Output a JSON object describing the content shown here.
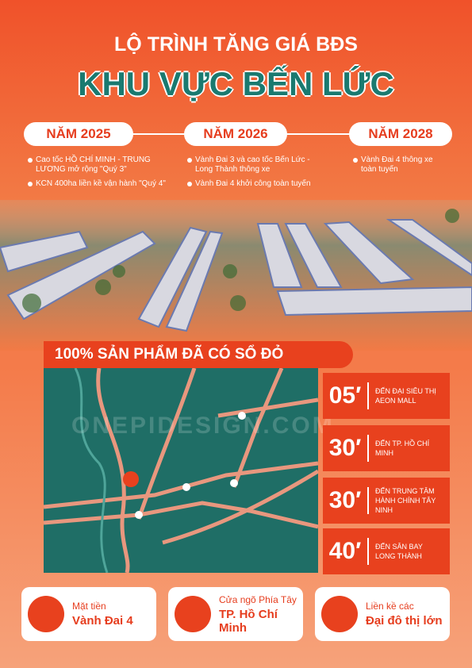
{
  "header": {
    "title": "LỘ TRÌNH TĂNG GIÁ BĐS",
    "subtitle": "KHU VỰC BẾN LỨC"
  },
  "timeline": [
    {
      "year": "NĂM 2025",
      "items": [
        "Cao tốc HỒ CHÍ MINH - TRUNG LƯƠNG mở rộng \"Quý 3\"",
        "KCN 400ha liền kề vận hành \"Quý 4\""
      ]
    },
    {
      "year": "NĂM 2026",
      "items": [
        "Vành Đai 3 và cao tốc Bến Lức - Long Thành thông xe",
        "Vành Đai 4 khởi công toàn tuyến"
      ]
    },
    {
      "year": "NĂM 2028",
      "items": [
        "Vành Đai 4 thông xe toàn tuyến"
      ]
    }
  ],
  "banner": "100% SẢN PHẨM ĐÃ CÓ SỔ ĐỎ",
  "distances": [
    {
      "time": "05′",
      "label": "ĐẾN ĐẠI SIÊU THỊ AEON MALL"
    },
    {
      "time": "30′",
      "label": "ĐẾN TP. HỒ CHÍ MINH"
    },
    {
      "time": "30′",
      "label": "ĐẾN TRUNG TÂM HÀNH CHÍNH TÂY NINH"
    },
    {
      "time": "40′",
      "label": "ĐẾN SÂN BAY LONG THÀNH"
    }
  ],
  "features": [
    {
      "line1": "Mặt tiền",
      "line2": "Vành Đai 4"
    },
    {
      "line1": "Cửa ngõ Phía Tây",
      "line2": "TP. Hồ Chí Minh"
    },
    {
      "line1": "Liền kề các",
      "line2": "Đại đô thị lớn"
    }
  ],
  "watermark": "ONEPIDESIGN.COM"
}
